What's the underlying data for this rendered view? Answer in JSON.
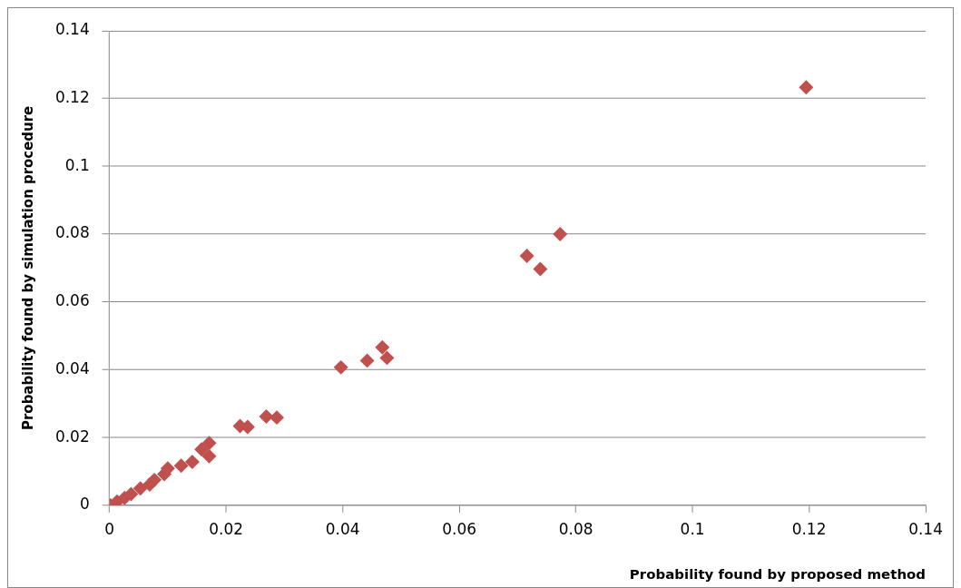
{
  "chart_data": {
    "type": "scatter",
    "xlabel": "Probability found by proposed method",
    "ylabel": "Probability found by simulation procedure",
    "x": [
      0.1195,
      0.0716,
      0.0739,
      0.0773,
      0.0397,
      0.0442,
      0.0468,
      0.0476,
      0.0224,
      0.0237,
      0.0269,
      0.0287,
      0.0171,
      0.0158,
      0.0171,
      0.0142,
      0.0123,
      0.01,
      0.0094,
      0.0077,
      0.0069,
      0.0053,
      0.0037,
      0.0026,
      0.0013,
      0.0002
    ],
    "series": [
      {
        "color": "#c0504d",
        "values": [
          0.1233,
          0.0736,
          0.0697,
          0.08,
          0.0407,
          0.0427,
          0.0466,
          0.0435,
          0.0234,
          0.0231,
          0.0262,
          0.0259,
          0.0184,
          0.0165,
          0.0145,
          0.0128,
          0.0117,
          0.0109,
          0.0092,
          0.0075,
          0.0061,
          0.005,
          0.0033,
          0.0022,
          0.0011,
          0
        ]
      }
    ],
    "xlim": [
      0,
      0.14
    ],
    "ylim": [
      0,
      0.14
    ],
    "xticks": [
      0,
      0.02,
      0.04,
      0.06,
      0.08,
      0.1,
      0.12,
      0.14
    ],
    "yticks": [
      0,
      0.02,
      0.04,
      0.06,
      0.08,
      0.1,
      0.12,
      0.14
    ],
    "grid": "y",
    "legend": false,
    "marker": "diamond"
  }
}
